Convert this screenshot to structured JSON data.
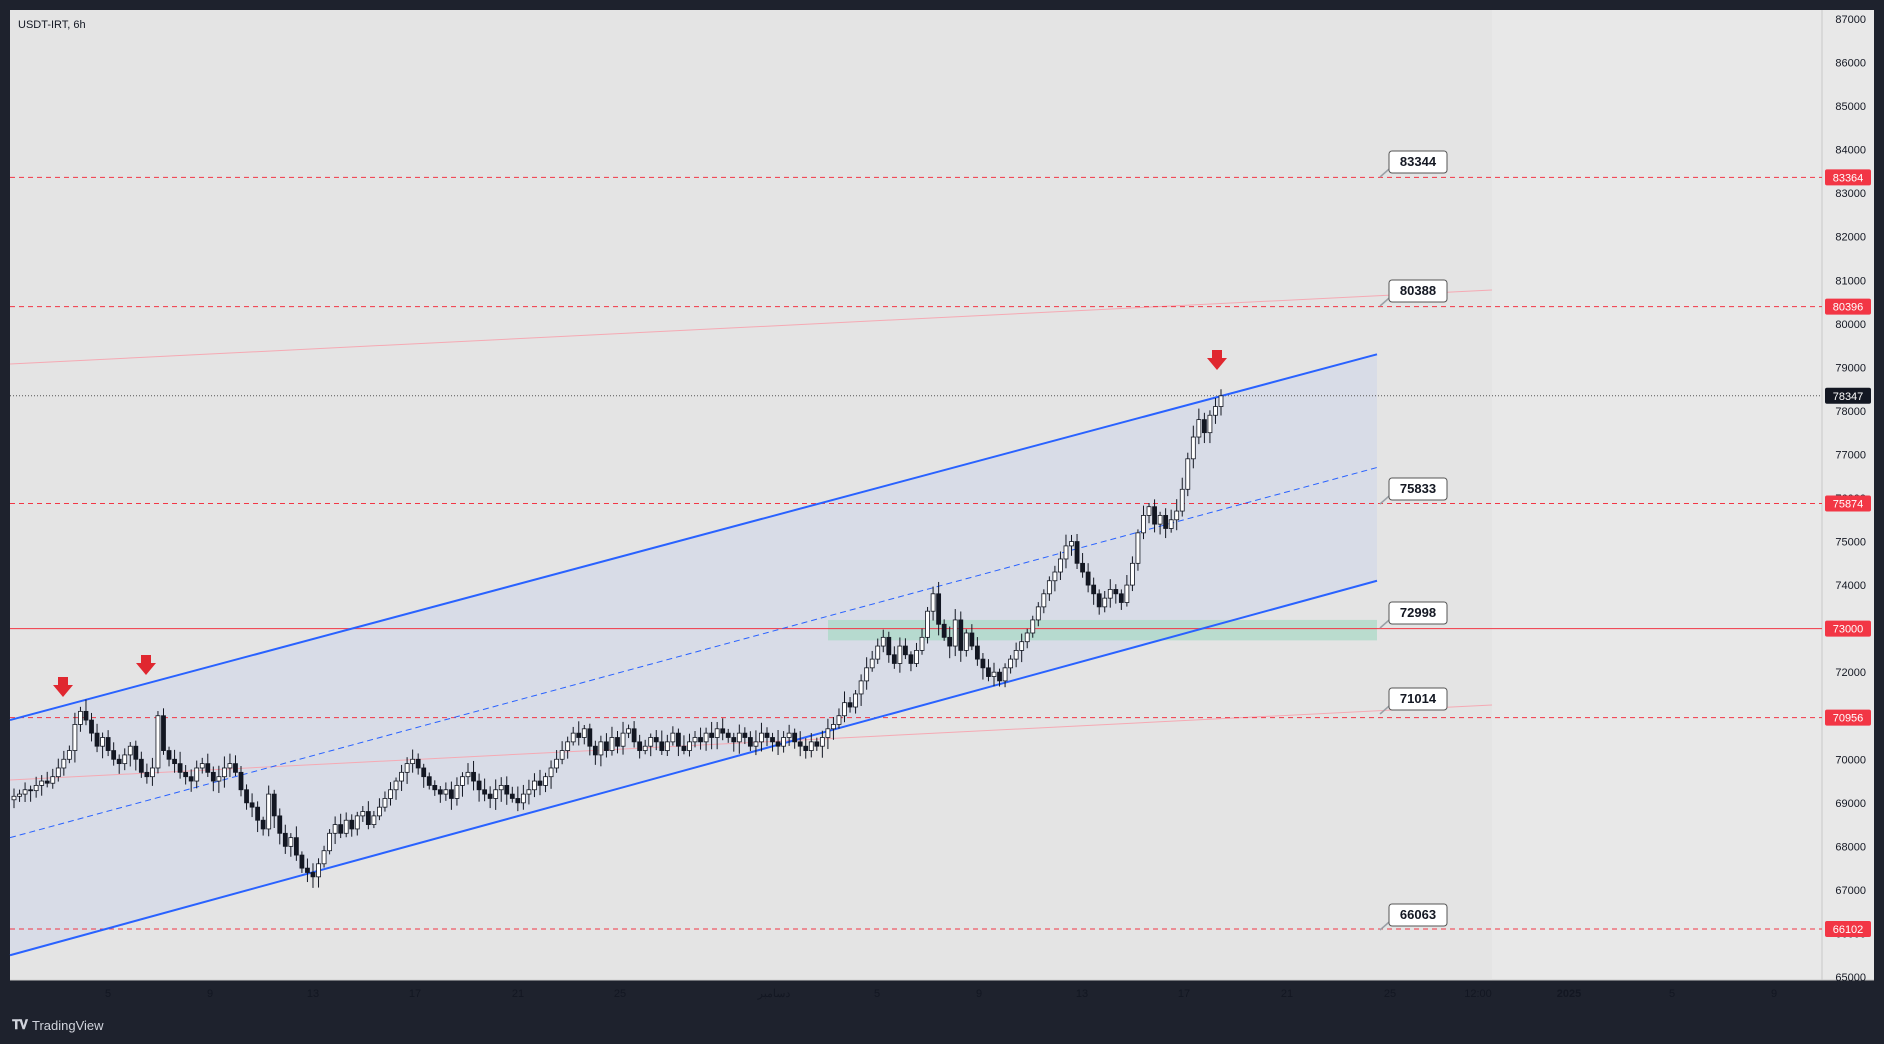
{
  "symbol": "USDT-IRT, 6h",
  "brand": "TradingView",
  "colors": {
    "background": "#1e222d",
    "chart_bg": "#e8e8e8",
    "channel_line": "#2962ff",
    "level_line": "#f23645",
    "arrow": "#e0272f",
    "zone": "#a8d8c4"
  },
  "chart_data": {
    "type": "candlestick",
    "title": "USDT-IRT, 6h",
    "ylim": [
      65000,
      87000
    ],
    "y_ticks": [
      65000,
      66000,
      67000,
      68000,
      69000,
      70000,
      71000,
      72000,
      73000,
      74000,
      75000,
      76000,
      77000,
      78000,
      79000,
      80000,
      81000,
      82000,
      83000,
      84000,
      85000,
      86000,
      87000
    ],
    "x_ticks": [
      "5",
      "9",
      "13",
      "17",
      "21",
      "25",
      "دسامبر",
      "5",
      "9",
      "13",
      "17",
      "21",
      "25",
      "12:00",
      "2025",
      "5",
      "9"
    ],
    "last_price": 78347,
    "price_labels": [
      83364,
      80396,
      75874,
      73000,
      70956,
      66102
    ],
    "callouts": [
      "83344",
      "80388",
      "75833",
      "72998",
      "71014",
      "66063"
    ],
    "levels": [
      83364,
      80396,
      75874,
      73000,
      70956,
      66102
    ],
    "support_zone": [
      72730,
      73200
    ],
    "channel": {
      "upper": {
        "from": 70900,
        "to": 79300
      },
      "mid": {
        "from": 68200,
        "to": 76700
      },
      "lower": {
        "from": 65500,
        "to": 74100
      }
    },
    "close_series": [
      69150,
      69200,
      69300,
      69280,
      69400,
      69500,
      69450,
      69600,
      69800,
      70000,
      70200,
      70800,
      71100,
      70900,
      70600,
      70300,
      70500,
      70200,
      70000,
      69900,
      70100,
      70300,
      70000,
      69700,
      69600,
      69800,
      71000,
      70200,
      70000,
      69900,
      69700,
      69600,
      69500,
      69800,
      69900,
      69700,
      69500,
      69600,
      69800,
      69900,
      69700,
      69300,
      69000,
      68900,
      68600,
      68400,
      69200,
      68700,
      68300,
      68000,
      68200,
      67800,
      67500,
      67400,
      67300,
      67600,
      67900,
      68300,
      68500,
      68300,
      68600,
      68400,
      68700,
      68800,
      68500,
      68700,
      68900,
      69100,
      69300,
      69500,
      69700,
      69900,
      70000,
      69800,
      69600,
      69400,
      69300,
      69200,
      69300,
      69100,
      69400,
      69600,
      69700,
      69500,
      69300,
      69200,
      69100,
      69300,
      69400,
      69200,
      69100,
      69000,
      69200,
      69300,
      69500,
      69400,
      69600,
      69800,
      70000,
      70200,
      70400,
      70600,
      70500,
      70700,
      70300,
      70100,
      70400,
      70200,
      70500,
      70300,
      70600,
      70700,
      70400,
      70200,
      70300,
      70500,
      70400,
      70200,
      70400,
      70600,
      70300,
      70200,
      70400,
      70500,
      70400,
      70600,
      70500,
      70700,
      70600,
      70500,
      70400,
      70600,
      70500,
      70300,
      70400,
      70600,
      70500,
      70400,
      70300,
      70500,
      70600,
      70400,
      70300,
      70200,
      70400,
      70300,
      70500,
      70700,
      70800,
      71000,
      71300,
      71200,
      71500,
      71800,
      72100,
      72300,
      72600,
      72800,
      72400,
      72200,
      72600,
      72400,
      72200,
      72500,
      72800,
      73400,
      73800,
      73100,
      72800,
      72600,
      73200,
      72500,
      72900,
      72600,
      72300,
      72100,
      71900,
      72000,
      71800,
      72100,
      72300,
      72500,
      72700,
      72900,
      73200,
      73500,
      73800,
      74100,
      74300,
      74600,
      74900,
      75000,
      74500,
      74300,
      74000,
      73800,
      73500,
      73700,
      73900,
      73800,
      73600,
      74000,
      74500,
      75200,
      75600,
      75800,
      75400,
      75600,
      75300,
      75500,
      75700,
      76200,
      76900,
      77400,
      77800,
      77500,
      77900,
      78100,
      78347
    ],
    "series": [
      {
        "values": [
          70900,
          79300
        ]
      },
      {
        "values": [
          65500,
          74100
        ]
      }
    ]
  }
}
